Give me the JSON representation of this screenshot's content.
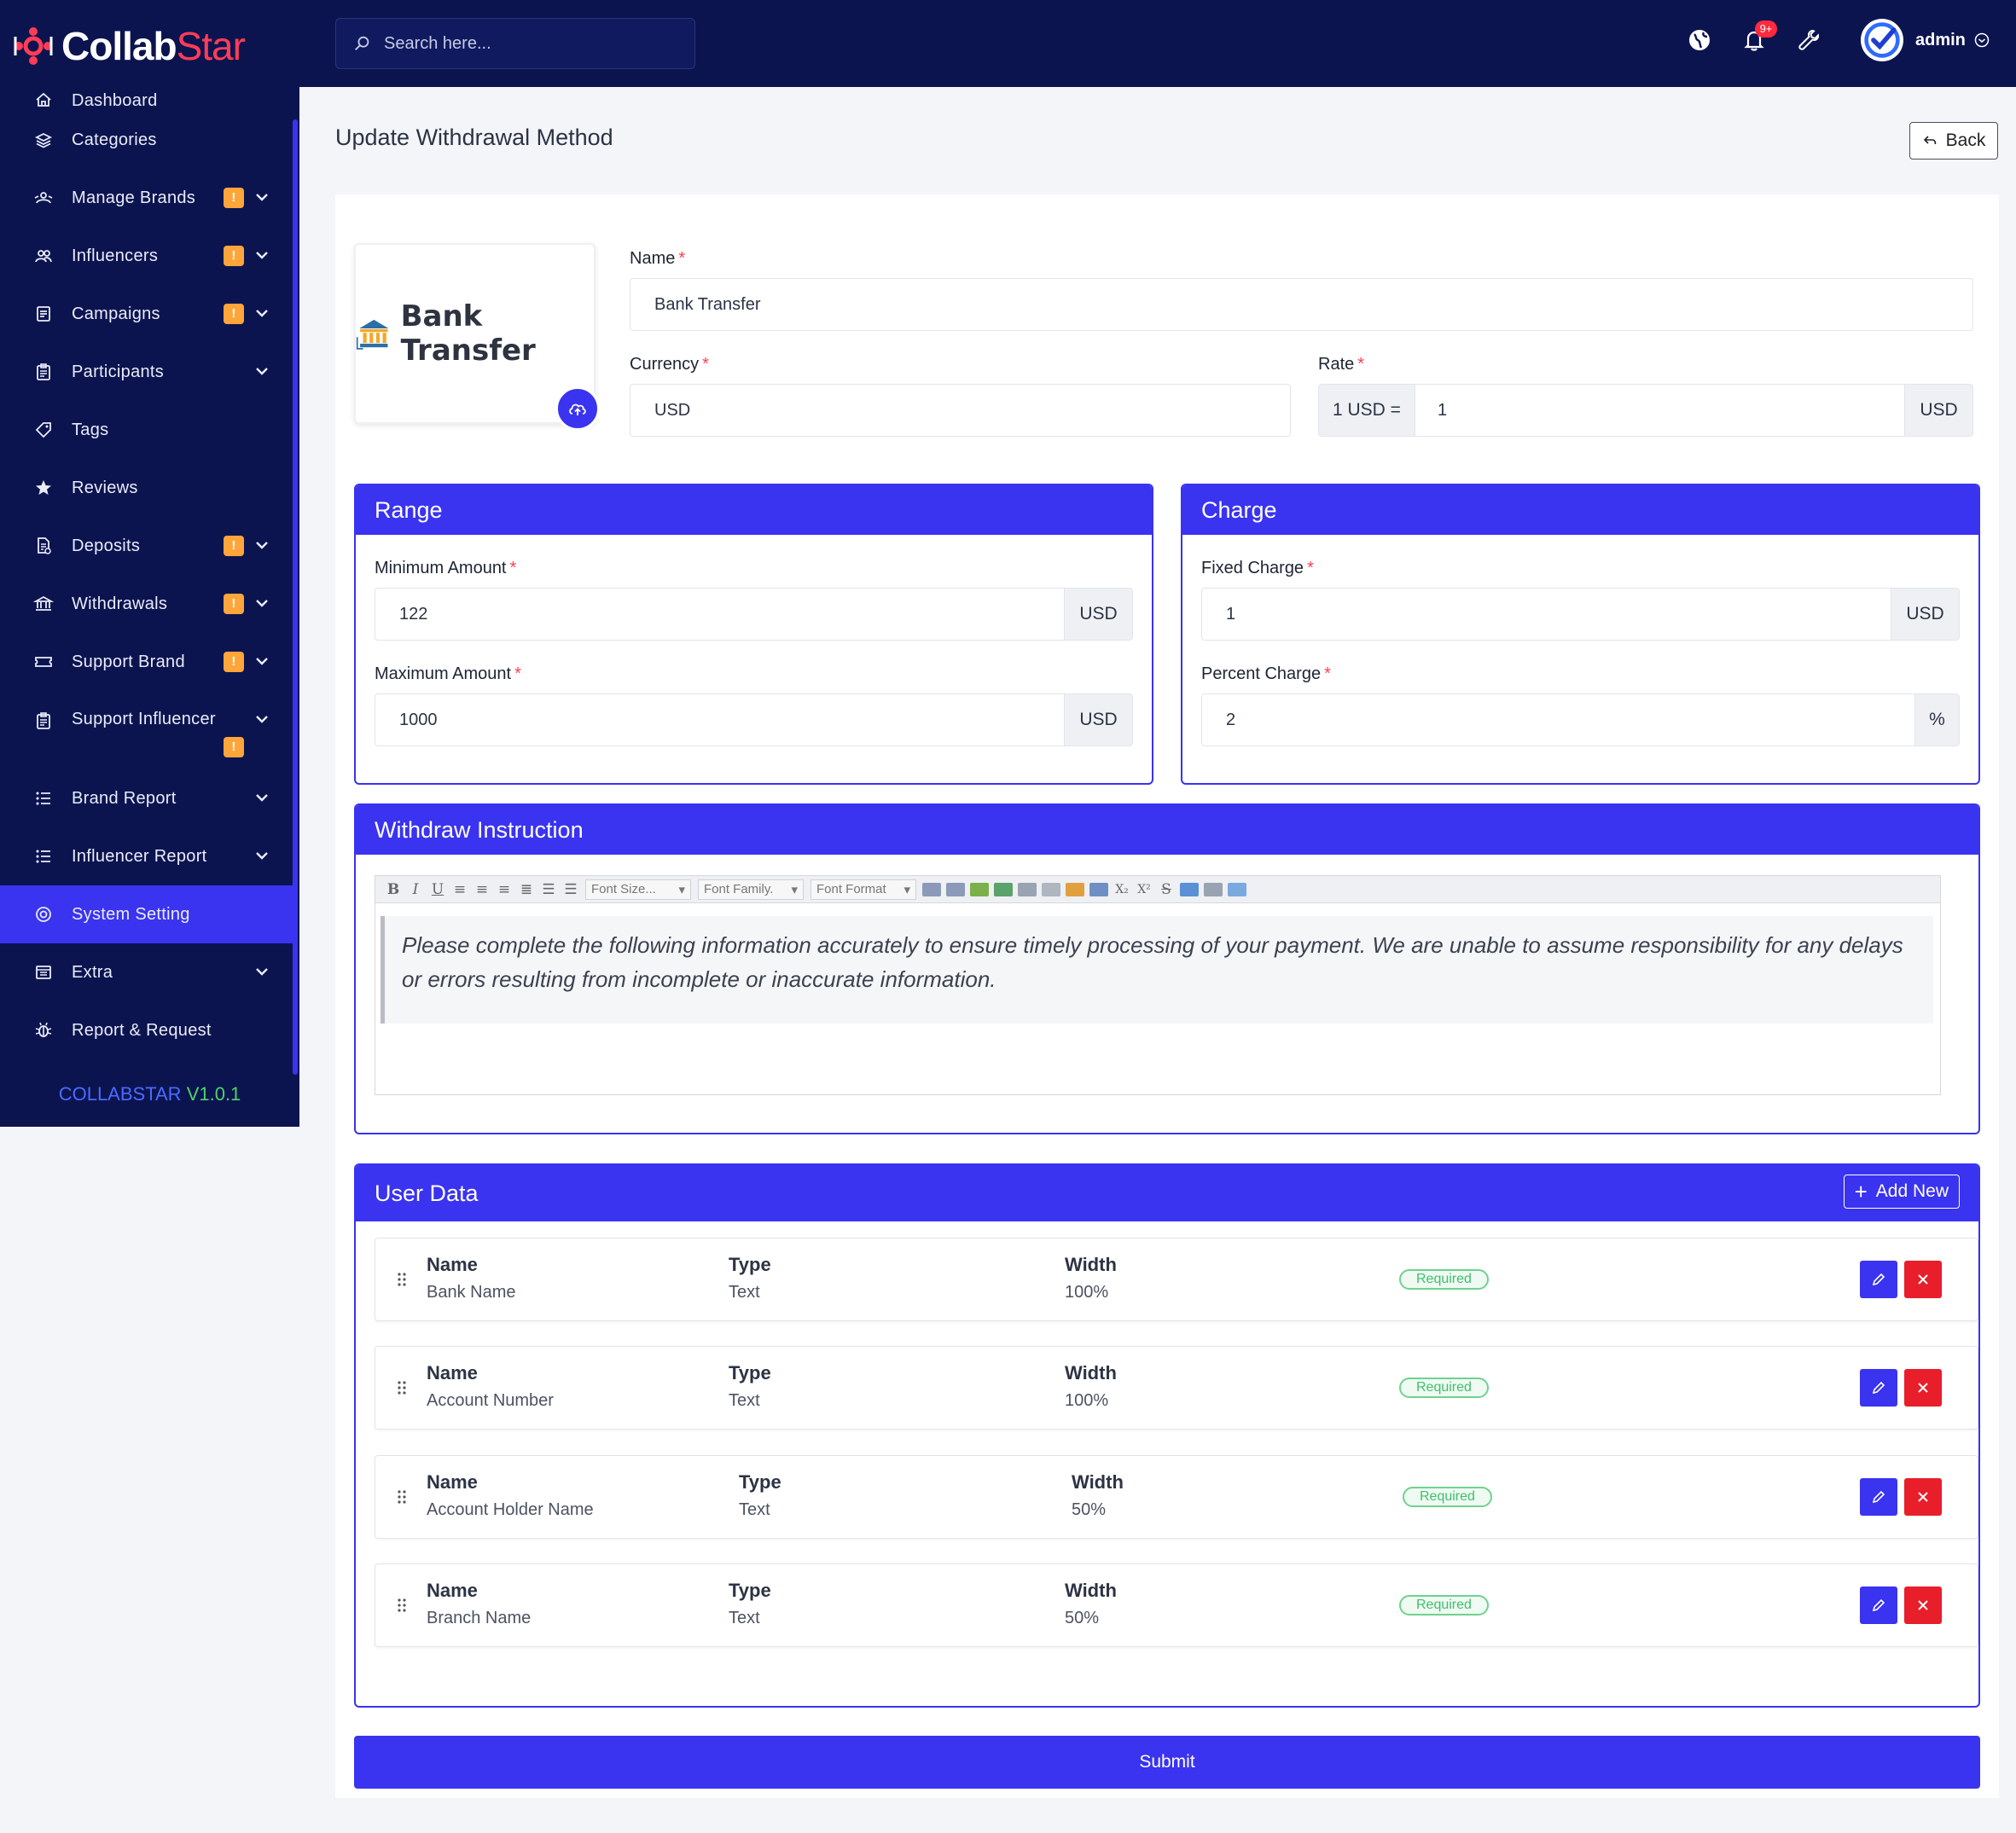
{
  "app": {
    "logo_main": "Collab",
    "logo_accent": "Star",
    "version_name": "COLLABSTAR",
    "version_number": "V1.0.1"
  },
  "sidebar": {
    "items": [
      {
        "label": "Dashboard",
        "icon": "home-icon",
        "badge": "",
        "chevron": false
      },
      {
        "label": "Categories",
        "icon": "layers-icon",
        "badge": "",
        "chevron": false
      },
      {
        "label": "Manage Brands",
        "icon": "brands-icon",
        "badge": "!",
        "chevron": true
      },
      {
        "label": "Influencers",
        "icon": "users-icon",
        "badge": "!",
        "chevron": true
      },
      {
        "label": "Campaigns",
        "icon": "campaign-icon",
        "badge": "!",
        "chevron": true
      },
      {
        "label": "Participants",
        "icon": "clipboard-icon",
        "badge": "",
        "chevron": true
      },
      {
        "label": "Tags",
        "icon": "tag-icon",
        "badge": "",
        "chevron": false
      },
      {
        "label": "Reviews",
        "icon": "star-icon",
        "badge": "",
        "chevron": false
      },
      {
        "label": "Deposits",
        "icon": "deposit-icon",
        "badge": "!",
        "chevron": true
      },
      {
        "label": "Withdrawals",
        "icon": "bank-icon",
        "badge": "!",
        "chevron": true
      },
      {
        "label": "Support Brand",
        "icon": "ticket-icon",
        "badge": "!",
        "chevron": true
      },
      {
        "label": "Support Influencer",
        "icon": "clipboard-icon",
        "badge": "!",
        "chevron": true
      },
      {
        "label": "Brand Report",
        "icon": "list-icon",
        "badge": "",
        "chevron": true
      },
      {
        "label": "Influencer Report",
        "icon": "list-icon",
        "badge": "",
        "chevron": true
      },
      {
        "label": "System Setting",
        "icon": "settings-icon",
        "badge": "",
        "chevron": false,
        "active": true
      },
      {
        "label": "Extra",
        "icon": "extra-icon",
        "badge": "",
        "chevron": true
      },
      {
        "label": "Report & Request",
        "icon": "bug-icon",
        "badge": "",
        "chevron": false
      }
    ]
  },
  "topbar": {
    "search_placeholder": "Search here...",
    "notification_count": "9+",
    "user_name": "admin"
  },
  "page": {
    "title": "Update Withdrawal Method",
    "back_label": "Back"
  },
  "method": {
    "image_text": "Bank Transfer",
    "name_label": "Name",
    "name_value": "Bank Transfer",
    "currency_label": "Currency",
    "currency_value": "USD",
    "rate_label": "Rate",
    "rate_prefix": "1 USD =",
    "rate_value": "1",
    "rate_suffix": "USD"
  },
  "range": {
    "title": "Range",
    "min_label": "Minimum Amount",
    "min_value": "122",
    "min_suffix": "USD",
    "max_label": "Maximum Amount",
    "max_value": "1000",
    "max_suffix": "USD"
  },
  "charge": {
    "title": "Charge",
    "fixed_label": "Fixed Charge",
    "fixed_value": "1",
    "fixed_suffix": "USD",
    "percent_label": "Percent Charge",
    "percent_value": "2",
    "percent_suffix": "%"
  },
  "instruction": {
    "title": "Withdraw Instruction",
    "font_size": "Font Size...",
    "font_family": "Font Family.",
    "font_format": "Font Format",
    "text": "Please complete the following information accurately to ensure timely processing of your payment. We are unable to assume responsibility for any delays or errors resulting from incomplete or inaccurate information."
  },
  "user_data": {
    "title": "User Data",
    "add_label": "Add New",
    "col_name": "Name",
    "col_type": "Type",
    "col_width": "Width",
    "rows": [
      {
        "name": "Bank Name",
        "type": "Text",
        "width": "100%",
        "status": "Required"
      },
      {
        "name": "Account Number",
        "type": "Text",
        "width": "100%",
        "status": "Required"
      },
      {
        "name": "Account Holder Name",
        "type": "Text",
        "width": "50%",
        "status": "Required"
      },
      {
        "name": "Branch Name",
        "type": "Text",
        "width": "50%",
        "status": "Required"
      }
    ]
  },
  "submit_label": "Submit",
  "colors": {
    "sidebar_bg": "#0c1450",
    "primary": "#3a33f0",
    "badge": "#ffa53a",
    "danger": "#e81e2a",
    "success": "#3fbf6a"
  }
}
